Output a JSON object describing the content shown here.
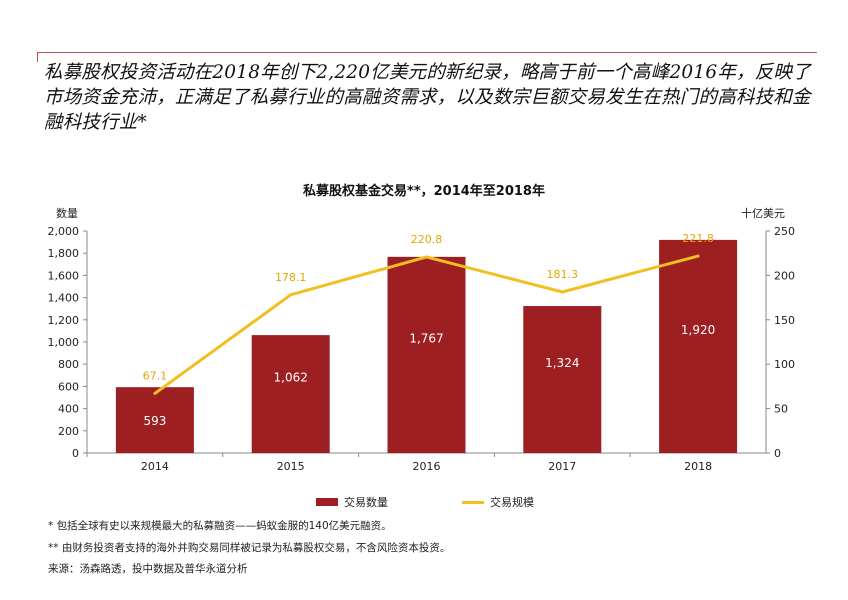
{
  "headline": "私募股权投资活动在2018年创下2,220亿美元的新纪录，略高于前一个高峰2016年，反映了市场资金充沛，正满足了私募行业的高融资需求，以及数宗巨额交易发生在热门的高科技和金融科技行业*",
  "chart_data": {
    "type": "bar",
    "title": "私募股权基金交易**，2014年至2018年",
    "categories": [
      "2014",
      "2015",
      "2016",
      "2017",
      "2018"
    ],
    "left_axis_label": "数量",
    "right_axis_label": "十亿美元",
    "left_ylim": [
      0,
      2000
    ],
    "left_ticks": [
      "2,000",
      "1,800",
      "1,600",
      "1,400",
      "1,200",
      "1,000",
      "800",
      "600",
      "400",
      "200",
      "0"
    ],
    "right_ylim": [
      0,
      250
    ],
    "right_ticks": [
      "250",
      "200",
      "150",
      "100",
      "50",
      "0"
    ],
    "series": [
      {
        "name": "交易数量",
        "kind": "bar",
        "axis": "left",
        "color": "#9e1f22",
        "values": [
          593,
          1062,
          1767,
          1324,
          1920
        ],
        "labels": [
          "593",
          "1,062",
          "1,767",
          "1,324",
          "1,920"
        ]
      },
      {
        "name": "交易规模",
        "kind": "line",
        "axis": "right",
        "color": "#f0c020",
        "values": [
          67.1,
          178.1,
          220.8,
          181.3,
          221.8
        ],
        "labels": [
          "67.1",
          "178.1",
          "220.8",
          "181.3",
          "221.8"
        ]
      }
    ],
    "legend_position": "bottom"
  },
  "notes": [
    "* 包括全球有史以来规模最大的私募融资——蚂蚁金服的140亿美元融资。",
    "** 由财务投资者支持的海外并购交易同样被记录为私募股权交易，不含风险资本投资。",
    "来源：汤森路透，投中数据及普华永道分析"
  ]
}
